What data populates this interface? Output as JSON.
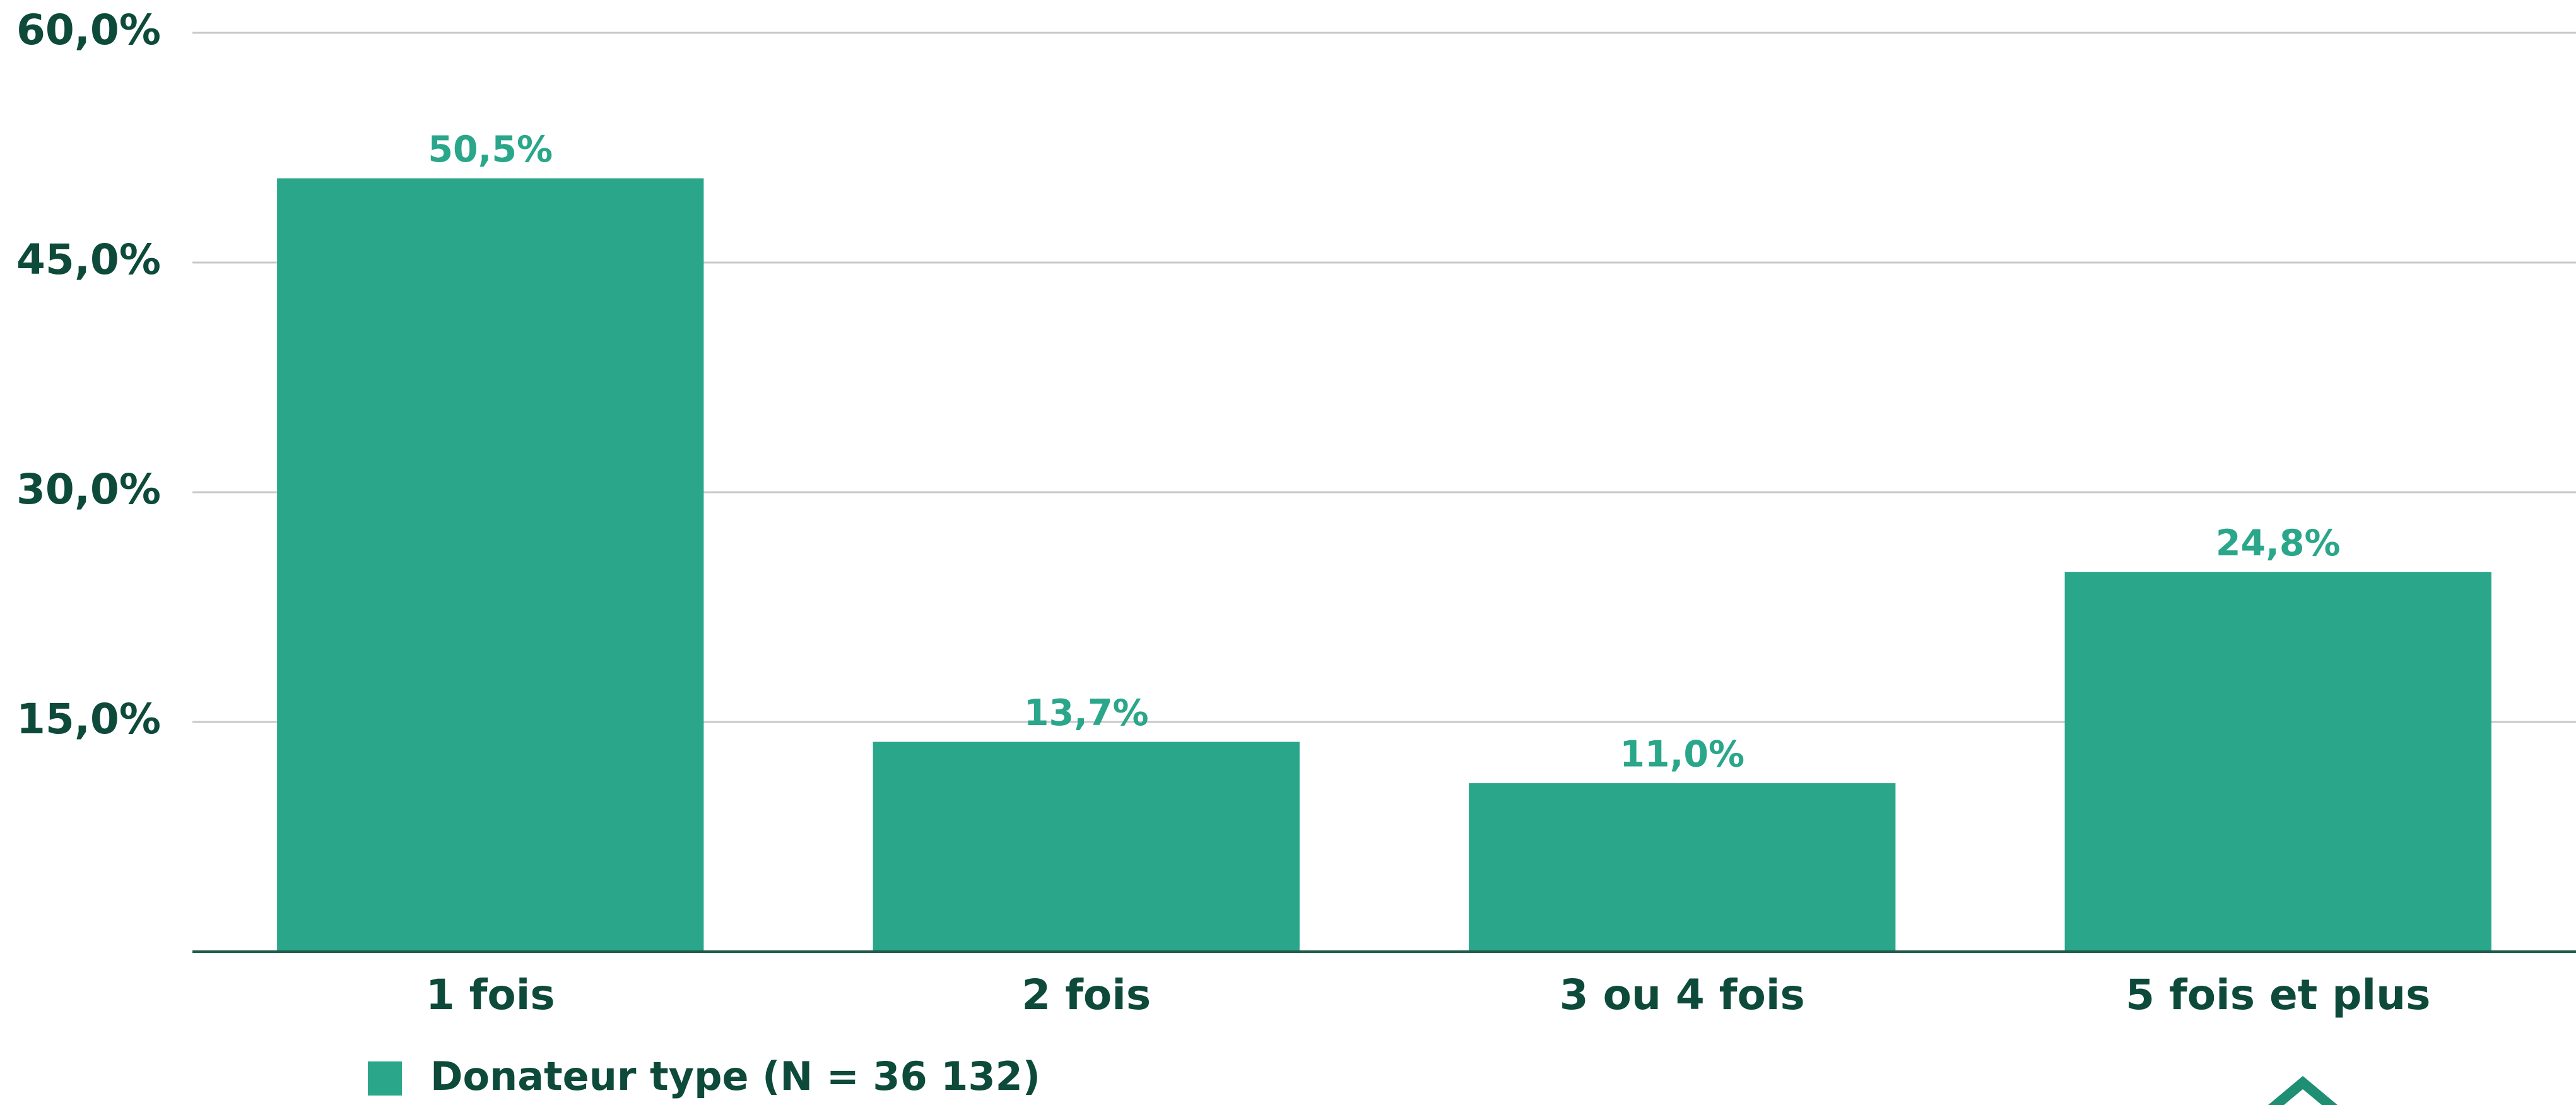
{
  "chart_data": {
    "type": "bar",
    "categories": [
      "1 fois",
      "2 fois",
      "3 ou 4 fois",
      "5 fois et plus"
    ],
    "series": [
      {
        "name": "Donateur type (N = 36 132)",
        "color": "#2aa68a",
        "values": [
          50.5,
          13.7,
          11.0,
          24.8
        ],
        "value_labels": [
          "50,5%",
          "13,7%",
          "11,0%",
          "24,8%"
        ]
      }
    ],
    "ylim": [
      0,
      60
    ],
    "yticks": [
      {
        "value": 15,
        "label": "15,0%"
      },
      {
        "value": 30,
        "label": "30,0%"
      },
      {
        "value": 45,
        "label": "45,0%"
      },
      {
        "value": 60,
        "label": "60,0%"
      }
    ],
    "grid": true,
    "legend": "bottom-left"
  }
}
